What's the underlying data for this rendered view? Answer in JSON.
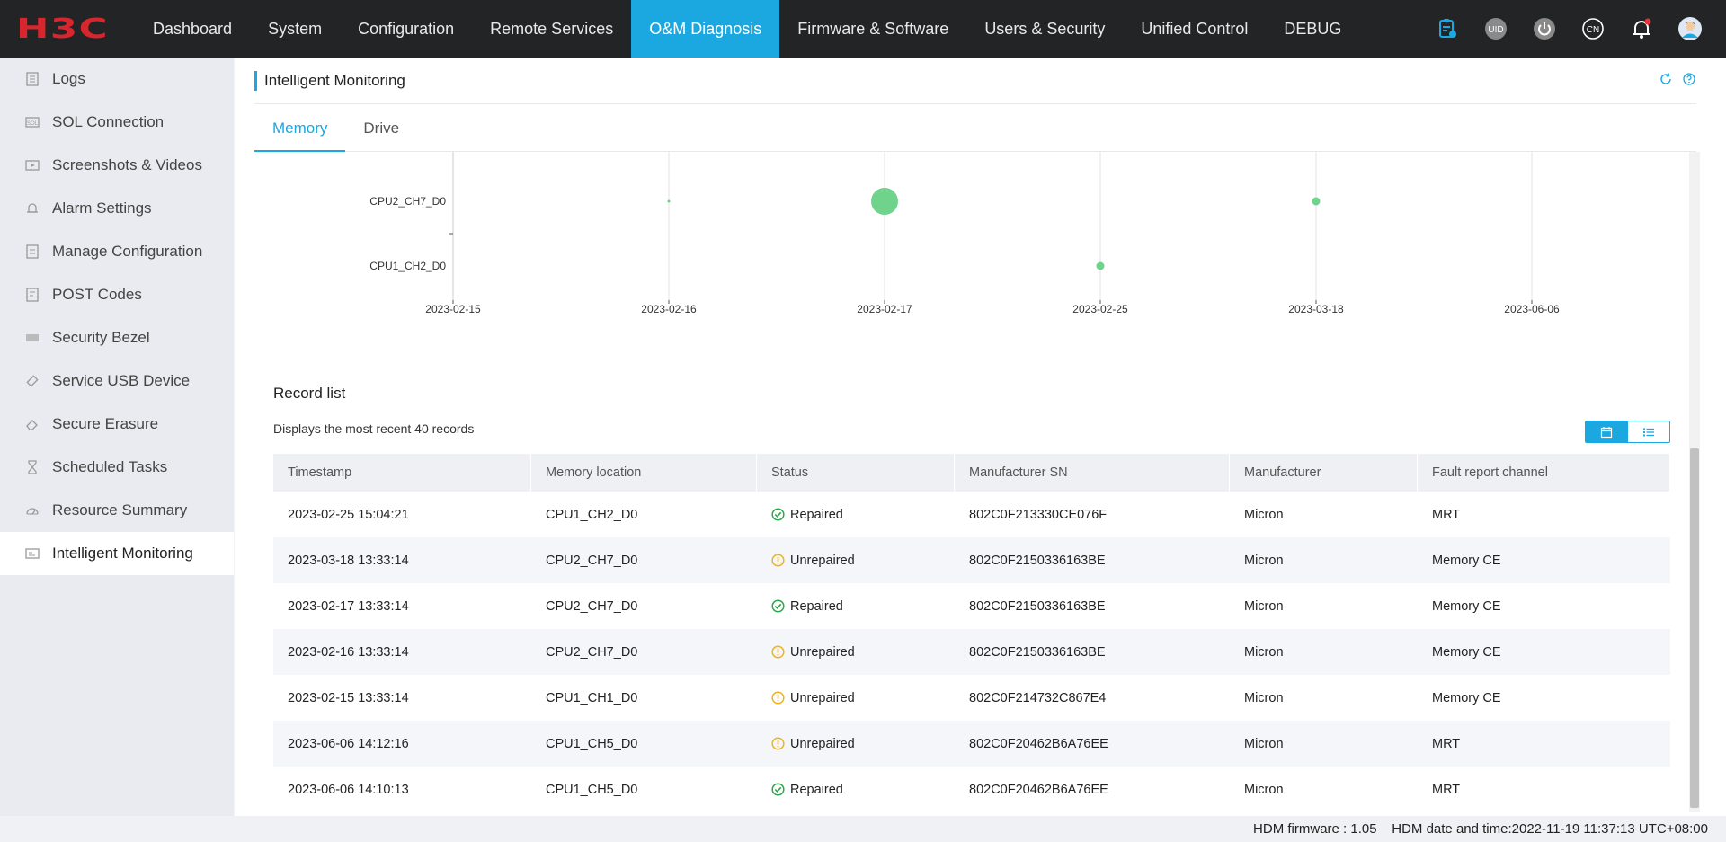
{
  "brand": {
    "logo_text": "H3C",
    "logo_color": "#d7262e"
  },
  "nav": {
    "items": [
      {
        "label": "Dashboard"
      },
      {
        "label": "System"
      },
      {
        "label": "Configuration"
      },
      {
        "label": "Remote Services"
      },
      {
        "label": "O&M Diagnosis"
      },
      {
        "label": "Firmware & Software"
      },
      {
        "label": "Users & Security"
      },
      {
        "label": "Unified Control"
      },
      {
        "label": "DEBUG"
      }
    ],
    "active": "O&M Diagnosis",
    "accent": "#1ba8e0",
    "icons": [
      "clipboard-icon",
      "uid-icon",
      "power-icon",
      "language-icon",
      "bell-icon",
      "user-avatar-icon"
    ],
    "uid_label": "UID",
    "lang_label": "CN"
  },
  "sidebar": {
    "items": [
      {
        "label": "Logs",
        "icon": "log-icon"
      },
      {
        "label": "SOL Connection",
        "icon": "sol-icon"
      },
      {
        "label": "Screenshots & Videos",
        "icon": "screenshot-icon"
      },
      {
        "label": "Alarm Settings",
        "icon": "alarm-icon"
      },
      {
        "label": "Manage Configuration",
        "icon": "config-icon"
      },
      {
        "label": "POST Codes",
        "icon": "post-icon"
      },
      {
        "label": "Security Bezel",
        "icon": "bezel-icon"
      },
      {
        "label": "Service USB Device",
        "icon": "usb-icon"
      },
      {
        "label": "Secure Erasure",
        "icon": "erase-icon"
      },
      {
        "label": "Scheduled Tasks",
        "icon": "hourglass-icon"
      },
      {
        "label": "Resource Summary",
        "icon": "resource-icon"
      },
      {
        "label": "Intelligent Monitoring",
        "icon": "monitor-icon"
      }
    ],
    "active": "Intelligent Monitoring"
  },
  "panel": {
    "title": "Intelligent Monitoring",
    "tabs": [
      {
        "label": "Memory"
      },
      {
        "label": "Drive"
      }
    ],
    "active_tab": "Memory"
  },
  "chart_data": {
    "type": "scatter",
    "y_categories": [
      "CPU1_CH2_D0",
      "CPU2_CH7_D0"
    ],
    "x_categories": [
      "2023-02-15",
      "2023-02-16",
      "2023-02-17",
      "2023-02-25",
      "2023-03-18",
      "2023-06-06"
    ],
    "points": [
      {
        "x": "2023-02-16",
        "y": "CPU2_CH7_D0",
        "size": 1
      },
      {
        "x": "2023-02-17",
        "y": "CPU2_CH7_D0",
        "size": 10
      },
      {
        "x": "2023-02-25",
        "y": "CPU1_CH2_D0",
        "size": 3
      },
      {
        "x": "2023-03-18",
        "y": "CPU2_CH7_D0",
        "size": 3
      }
    ],
    "point_color": "#6fd38b",
    "grid": true
  },
  "records": {
    "title": "Record list",
    "subtitle": "Displays the most recent 40 records",
    "columns": [
      "Timestamp",
      "Memory location",
      "Status",
      "Manufacturer SN",
      "Manufacturer",
      "Fault report channel"
    ],
    "rows": [
      {
        "timestamp": "2023-02-25 15:04:21",
        "location": "CPU1_CH2_D0",
        "status": "Repaired",
        "sn": "802C0F213330CE076F",
        "manufacturer": "Micron",
        "channel": "MRT"
      },
      {
        "timestamp": "2023-03-18 13:33:14",
        "location": "CPU2_CH7_D0",
        "status": "Unrepaired",
        "sn": "802C0F2150336163BE",
        "manufacturer": "Micron",
        "channel": "Memory CE"
      },
      {
        "timestamp": "2023-02-17 13:33:14",
        "location": "CPU2_CH7_D0",
        "status": "Repaired",
        "sn": "802C0F2150336163BE",
        "manufacturer": "Micron",
        "channel": "Memory CE"
      },
      {
        "timestamp": "2023-02-16 13:33:14",
        "location": "CPU2_CH7_D0",
        "status": "Unrepaired",
        "sn": "802C0F2150336163BE",
        "manufacturer": "Micron",
        "channel": "Memory CE"
      },
      {
        "timestamp": "2023-02-15 13:33:14",
        "location": "CPU1_CH1_D0",
        "status": "Unrepaired",
        "sn": "802C0F214732C867E4",
        "manufacturer": "Micron",
        "channel": "Memory CE"
      },
      {
        "timestamp": "2023-06-06 14:12:16",
        "location": "CPU1_CH5_D0",
        "status": "Unrepaired",
        "sn": "802C0F20462B6A76EE",
        "manufacturer": "Micron",
        "channel": "MRT"
      },
      {
        "timestamp": "2023-06-06 14:10:13",
        "location": "CPU1_CH5_D0",
        "status": "Repaired",
        "sn": "802C0F20462B6A76EE",
        "manufacturer": "Micron",
        "channel": "MRT"
      }
    ],
    "status_colors": {
      "Repaired": "#2aa84a",
      "Unrepaired": "#f0b41a"
    }
  },
  "footer": {
    "firmware": "HDM firmware : 1.05",
    "datetime": "HDM date and time:2022-11-19 11:37:13 UTC+08:00"
  }
}
